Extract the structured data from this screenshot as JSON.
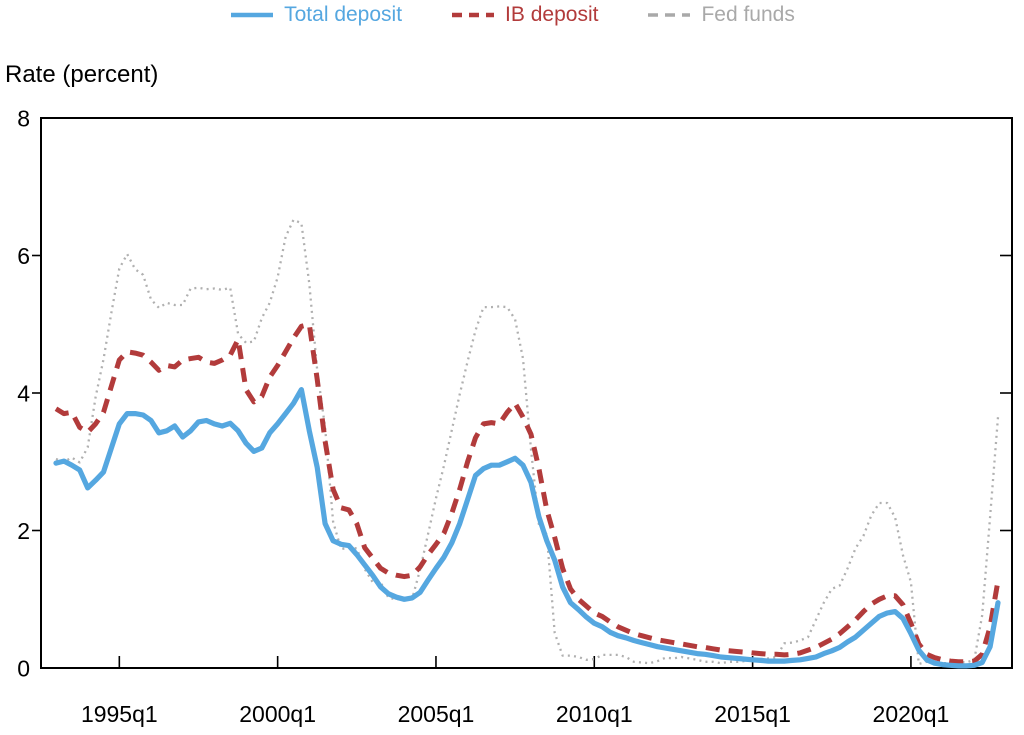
{
  "legend": {
    "items": [
      {
        "label": "Total deposit",
        "color": "#55a7e0",
        "dash": "none",
        "swatch_width": 4.6
      },
      {
        "label": "IB deposit",
        "color": "#b23b3b",
        "dash": "10 7",
        "swatch_width": 4.6
      },
      {
        "label": "Fed funds",
        "color": "#a9a9a9",
        "dash": "10 7",
        "swatch_width": 3.6
      }
    ]
  },
  "y_axis_title": "Rate (percent)",
  "chart_data": {
    "type": "line",
    "title": "",
    "xlabel": "",
    "ylabel": "Rate (percent)",
    "ylim": [
      0,
      8
    ],
    "y_ticks": [
      0,
      2,
      4,
      6,
      8
    ],
    "x_tick_labels": [
      "1995q1",
      "2000q1",
      "2005q1",
      "2010q1",
      "2015q1",
      "2020q1"
    ],
    "grid": false,
    "legend_position": "top-center",
    "x": [
      "1993q1",
      "1993q2",
      "1993q3",
      "1993q4",
      "1994q1",
      "1994q2",
      "1994q3",
      "1994q4",
      "1995q1",
      "1995q2",
      "1995q3",
      "1995q4",
      "1996q1",
      "1996q2",
      "1996q3",
      "1996q4",
      "1997q1",
      "1997q2",
      "1997q3",
      "1997q4",
      "1998q1",
      "1998q2",
      "1998q3",
      "1998q4",
      "1999q1",
      "1999q2",
      "1999q3",
      "1999q4",
      "2000q1",
      "2000q2",
      "2000q3",
      "2000q4",
      "2001q1",
      "2001q2",
      "2001q3",
      "2001q4",
      "2002q1",
      "2002q2",
      "2002q3",
      "2002q4",
      "2003q1",
      "2003q2",
      "2003q3",
      "2003q4",
      "2004q1",
      "2004q2",
      "2004q3",
      "2004q4",
      "2005q1",
      "2005q2",
      "2005q3",
      "2005q4",
      "2006q1",
      "2006q2",
      "2006q3",
      "2006q4",
      "2007q1",
      "2007q2",
      "2007q3",
      "2007q4",
      "2008q1",
      "2008q2",
      "2008q3",
      "2008q4",
      "2009q1",
      "2009q2",
      "2009q3",
      "2009q4",
      "2010q1",
      "2010q2",
      "2010q3",
      "2010q4",
      "2011q1",
      "2011q2",
      "2011q3",
      "2011q4",
      "2012q1",
      "2012q2",
      "2012q3",
      "2012q4",
      "2013q1",
      "2013q2",
      "2013q3",
      "2013q4",
      "2014q1",
      "2014q2",
      "2014q3",
      "2014q4",
      "2015q1",
      "2015q2",
      "2015q3",
      "2015q4",
      "2016q1",
      "2016q2",
      "2016q3",
      "2016q4",
      "2017q1",
      "2017q2",
      "2017q3",
      "2017q4",
      "2018q1",
      "2018q2",
      "2018q3",
      "2018q4",
      "2019q1",
      "2019q2",
      "2019q3",
      "2019q4",
      "2020q1",
      "2020q2",
      "2020q3",
      "2020q4",
      "2021q1",
      "2021q2",
      "2021q3",
      "2021q4",
      "2022q1",
      "2022q2",
      "2022q3",
      "2022q4"
    ],
    "series": [
      {
        "name": "Total deposit",
        "color": "#55a7e0",
        "width": 5.2,
        "dash": "none",
        "values": [
          2.98,
          3.01,
          2.95,
          2.88,
          2.62,
          2.73,
          2.85,
          3.2,
          3.55,
          3.7,
          3.7,
          3.68,
          3.6,
          3.42,
          3.45,
          3.52,
          3.36,
          3.45,
          3.58,
          3.6,
          3.55,
          3.52,
          3.56,
          3.45,
          3.27,
          3.15,
          3.2,
          3.42,
          3.55,
          3.7,
          3.85,
          4.05,
          3.45,
          2.92,
          2.1,
          1.85,
          1.8,
          1.78,
          1.65,
          1.5,
          1.35,
          1.18,
          1.08,
          1.03,
          1.0,
          1.02,
          1.1,
          1.28,
          1.45,
          1.61,
          1.82,
          2.1,
          2.45,
          2.8,
          2.9,
          2.95,
          2.95,
          3.0,
          3.05,
          2.95,
          2.7,
          2.2,
          1.85,
          1.57,
          1.18,
          0.95,
          0.85,
          0.74,
          0.65,
          0.6,
          0.52,
          0.47,
          0.44,
          0.4,
          0.37,
          0.34,
          0.31,
          0.29,
          0.27,
          0.25,
          0.23,
          0.21,
          0.2,
          0.18,
          0.16,
          0.15,
          0.14,
          0.13,
          0.12,
          0.11,
          0.1,
          0.1,
          0.1,
          0.11,
          0.12,
          0.14,
          0.16,
          0.21,
          0.25,
          0.3,
          0.38,
          0.45,
          0.55,
          0.65,
          0.75,
          0.8,
          0.82,
          0.72,
          0.5,
          0.26,
          0.12,
          0.07,
          0.05,
          0.04,
          0.03,
          0.03,
          0.04,
          0.08,
          0.31,
          0.95
        ]
      },
      {
        "name": "IB deposit",
        "color": "#b23b3b",
        "width": 5.0,
        "dash": "14 9",
        "values": [
          3.77,
          3.7,
          3.72,
          3.5,
          3.43,
          3.55,
          3.72,
          4.1,
          4.48,
          4.6,
          4.58,
          4.55,
          4.45,
          4.33,
          4.4,
          4.38,
          4.48,
          4.5,
          4.52,
          4.45,
          4.43,
          4.48,
          4.55,
          4.78,
          4.05,
          3.87,
          3.95,
          4.23,
          4.4,
          4.6,
          4.8,
          4.97,
          5.0,
          4.2,
          3.3,
          2.6,
          2.33,
          2.3,
          2.1,
          1.75,
          1.6,
          1.45,
          1.38,
          1.35,
          1.33,
          1.35,
          1.47,
          1.65,
          1.8,
          1.96,
          2.25,
          2.6,
          3.0,
          3.35,
          3.55,
          3.57,
          3.55,
          3.72,
          3.85,
          3.65,
          3.4,
          2.9,
          2.3,
          1.9,
          1.45,
          1.15,
          1.0,
          0.9,
          0.8,
          0.75,
          0.67,
          0.6,
          0.55,
          0.5,
          0.47,
          0.44,
          0.41,
          0.39,
          0.37,
          0.35,
          0.33,
          0.31,
          0.3,
          0.28,
          0.26,
          0.25,
          0.24,
          0.23,
          0.22,
          0.21,
          0.2,
          0.2,
          0.19,
          0.2,
          0.22,
          0.26,
          0.3,
          0.36,
          0.42,
          0.5,
          0.6,
          0.7,
          0.82,
          0.93,
          1.0,
          1.05,
          1.05,
          0.92,
          0.65,
          0.35,
          0.2,
          0.15,
          0.12,
          0.1,
          0.09,
          0.09,
          0.1,
          0.2,
          0.6,
          1.27
        ]
      },
      {
        "name": "Fed funds",
        "color": "#b0b0b0",
        "width": 2.3,
        "dash": "2 4.2",
        "values": [
          3.04,
          3.0,
          3.06,
          2.99,
          3.21,
          3.94,
          4.49,
          5.17,
          5.81,
          6.02,
          5.8,
          5.72,
          5.36,
          5.24,
          5.31,
          5.28,
          5.28,
          5.52,
          5.53,
          5.51,
          5.52,
          5.5,
          5.53,
          4.86,
          4.73,
          4.75,
          5.09,
          5.31,
          5.68,
          6.27,
          6.52,
          6.47,
          5.59,
          4.33,
          3.5,
          2.13,
          1.73,
          1.75,
          1.74,
          1.44,
          1.25,
          1.25,
          1.02,
          1.0,
          1.0,
          1.01,
          1.43,
          1.95,
          2.47,
          2.94,
          3.46,
          3.98,
          4.46,
          4.91,
          5.25,
          5.25,
          5.26,
          5.25,
          5.07,
          4.5,
          3.18,
          2.09,
          1.94,
          0.51,
          0.18,
          0.18,
          0.16,
          0.12,
          0.13,
          0.19,
          0.19,
          0.19,
          0.16,
          0.09,
          0.08,
          0.07,
          0.1,
          0.15,
          0.14,
          0.16,
          0.14,
          0.12,
          0.09,
          0.09,
          0.07,
          0.09,
          0.09,
          0.1,
          0.11,
          0.13,
          0.14,
          0.16,
          0.36,
          0.37,
          0.4,
          0.45,
          0.7,
          0.95,
          1.15,
          1.2,
          1.45,
          1.74,
          1.92,
          2.22,
          2.4,
          2.4,
          2.19,
          1.64,
          1.25,
          0.06,
          0.09,
          0.09,
          0.07,
          0.07,
          0.09,
          0.08,
          0.12,
          0.77,
          2.2,
          3.65
        ]
      }
    ]
  }
}
